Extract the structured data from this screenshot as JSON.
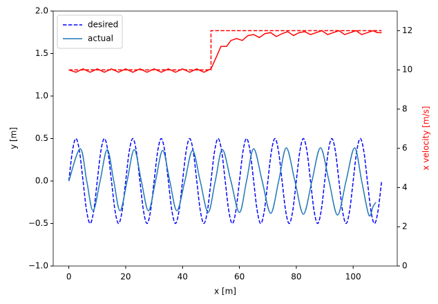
{
  "chart_data": {
    "type": "line",
    "xlabel": "x [m]",
    "ylabel": "y [m]",
    "y2label": "x velocity [m/s]",
    "y2label_color": "#ff0000",
    "xlim": [
      -5.5,
      115.5
    ],
    "xticks": [
      0,
      20,
      40,
      60,
      80,
      100
    ],
    "ylim": [
      -1.0,
      2.0
    ],
    "yticks": [
      {
        "value": -1.0,
        "label": "−1.0"
      },
      {
        "value": -0.5,
        "label": "−0.5"
      },
      {
        "value": 0.0,
        "label": "0.0"
      },
      {
        "value": 0.5,
        "label": "0.5"
      },
      {
        "value": 1.0,
        "label": "1.0"
      },
      {
        "value": 1.5,
        "label": "1.5"
      },
      {
        "value": 2.0,
        "label": "2.0"
      }
    ],
    "y2lim": [
      0,
      13
    ],
    "y2ticks": [
      0,
      2,
      4,
      6,
      8,
      10,
      12
    ],
    "legend": "upper left",
    "series": [
      {
        "name": "desired",
        "color": "#0000ff",
        "dashed": true,
        "x": [
          0,
          1.25,
          2.5,
          3.75,
          5,
          6.25,
          7.5,
          8.75,
          10,
          11.25,
          12.5,
          13.75,
          15,
          16.25,
          17.5,
          18.75,
          20,
          21.25,
          22.5,
          23.75,
          25,
          26.25,
          27.5,
          28.75,
          30,
          31.25,
          32.5,
          33.75,
          35,
          36.25,
          37.5,
          38.75,
          40,
          41.25,
          42.5,
          43.75,
          45,
          46.25,
          47.5,
          48.75,
          50,
          51.25,
          52.5,
          53.75,
          55,
          56.25,
          57.5,
          58.75,
          60,
          61.25,
          62.5,
          63.75,
          65,
          66.25,
          67.5,
          68.75,
          70,
          71.25,
          72.5,
          73.75,
          75,
          76.25,
          77.5,
          78.75,
          80,
          81.25,
          82.5,
          83.75,
          85,
          86.25,
          87.5,
          88.75,
          90,
          91.25,
          92.5,
          93.75,
          95,
          96.25,
          97.5,
          98.75,
          100,
          101.25,
          102.5,
          103.75,
          105,
          106.25,
          107.5,
          108.75,
          110
        ],
        "values": [
          0,
          0.35,
          0.5,
          0.35,
          0,
          -0.35,
          -0.5,
          -0.35,
          0,
          0.35,
          0.5,
          0.35,
          0,
          -0.35,
          -0.5,
          -0.35,
          0,
          0.35,
          0.5,
          0.35,
          0,
          -0.35,
          -0.5,
          -0.35,
          0,
          0.35,
          0.5,
          0.35,
          0,
          -0.35,
          -0.5,
          -0.35,
          0,
          0.35,
          0.5,
          0.35,
          0,
          -0.35,
          -0.5,
          -0.35,
          0,
          0.35,
          0.5,
          0.35,
          0,
          -0.35,
          -0.5,
          -0.35,
          0,
          0.35,
          0.5,
          0.35,
          0,
          -0.35,
          -0.5,
          -0.35,
          0,
          0.35,
          0.5,
          0.35,
          0,
          -0.35,
          -0.5,
          -0.35,
          0,
          0.35,
          0.5,
          0.35,
          0,
          -0.35,
          -0.5,
          -0.35,
          0,
          0.35,
          0.5,
          0.35,
          0,
          -0.35,
          -0.5,
          -0.35,
          0,
          0.35,
          0.5,
          0.35,
          0,
          -0.35,
          -0.5,
          -0.35,
          0
        ]
      },
      {
        "name": "actual",
        "color": "#1f77b4",
        "x": [
          0,
          4,
          6.3,
          8.5,
          11,
          13.5,
          15.8,
          18,
          20.5,
          23,
          25.5,
          28,
          30.5,
          33,
          35.5,
          38,
          40.8,
          43.5,
          46.2,
          49,
          51.5,
          54,
          57,
          60,
          62.5,
          65,
          68,
          71,
          73.8,
          76.5,
          79.5,
          82.5,
          85.5,
          88.5,
          91.5,
          94.5,
          97.5,
          100.5,
          103,
          105.5,
          107,
          108
        ],
        "values": [
          0,
          0.38,
          0,
          -0.35,
          0,
          0.37,
          0,
          -0.35,
          0,
          0.37,
          0,
          -0.35,
          0,
          0.36,
          0,
          -0.35,
          0,
          0.36,
          0,
          -0.37,
          0,
          0.37,
          0,
          -0.37,
          0,
          0.38,
          0,
          -0.38,
          0,
          0.39,
          0,
          -0.39,
          0,
          0.39,
          0,
          -0.4,
          0,
          0.39,
          0,
          -0.4,
          -0.3,
          -0.25
        ]
      },
      {
        "color": "#ff0000",
        "dashed": true,
        "axis": "y2",
        "x": [
          0,
          50,
          50,
          110
        ],
        "values": [
          10,
          10,
          12,
          12
        ]
      },
      {
        "color": "#ff0000",
        "axis": "y2",
        "x": [
          0,
          2.5,
          5,
          7.5,
          10,
          12.5,
          15,
          17.5,
          20,
          22.5,
          25,
          27.5,
          30,
          32.5,
          35,
          37.5,
          40,
          42.5,
          45,
          47.5,
          50,
          52,
          53.5,
          55.5,
          57,
          59,
          61,
          63,
          65,
          67,
          69,
          71,
          73,
          75,
          77,
          79,
          81,
          83,
          85,
          87,
          89,
          91,
          93,
          95,
          97,
          99,
          101,
          103,
          105,
          107,
          108.5,
          110
        ],
        "values": [
          10,
          9.88,
          10.05,
          9.88,
          10.05,
          9.88,
          10.05,
          9.88,
          10.05,
          9.88,
          10.05,
          9.88,
          10.05,
          9.88,
          10.05,
          9.88,
          10.05,
          9.88,
          10.05,
          9.88,
          10.05,
          10.7,
          11.2,
          11.2,
          11.5,
          11.6,
          11.5,
          11.75,
          11.8,
          11.65,
          11.85,
          11.9,
          11.7,
          11.85,
          11.95,
          11.75,
          11.9,
          11.95,
          11.8,
          11.9,
          12,
          11.8,
          11.9,
          12,
          11.8,
          11.9,
          12,
          11.8,
          11.9,
          12,
          11.9,
          11.9
        ]
      }
    ]
  }
}
